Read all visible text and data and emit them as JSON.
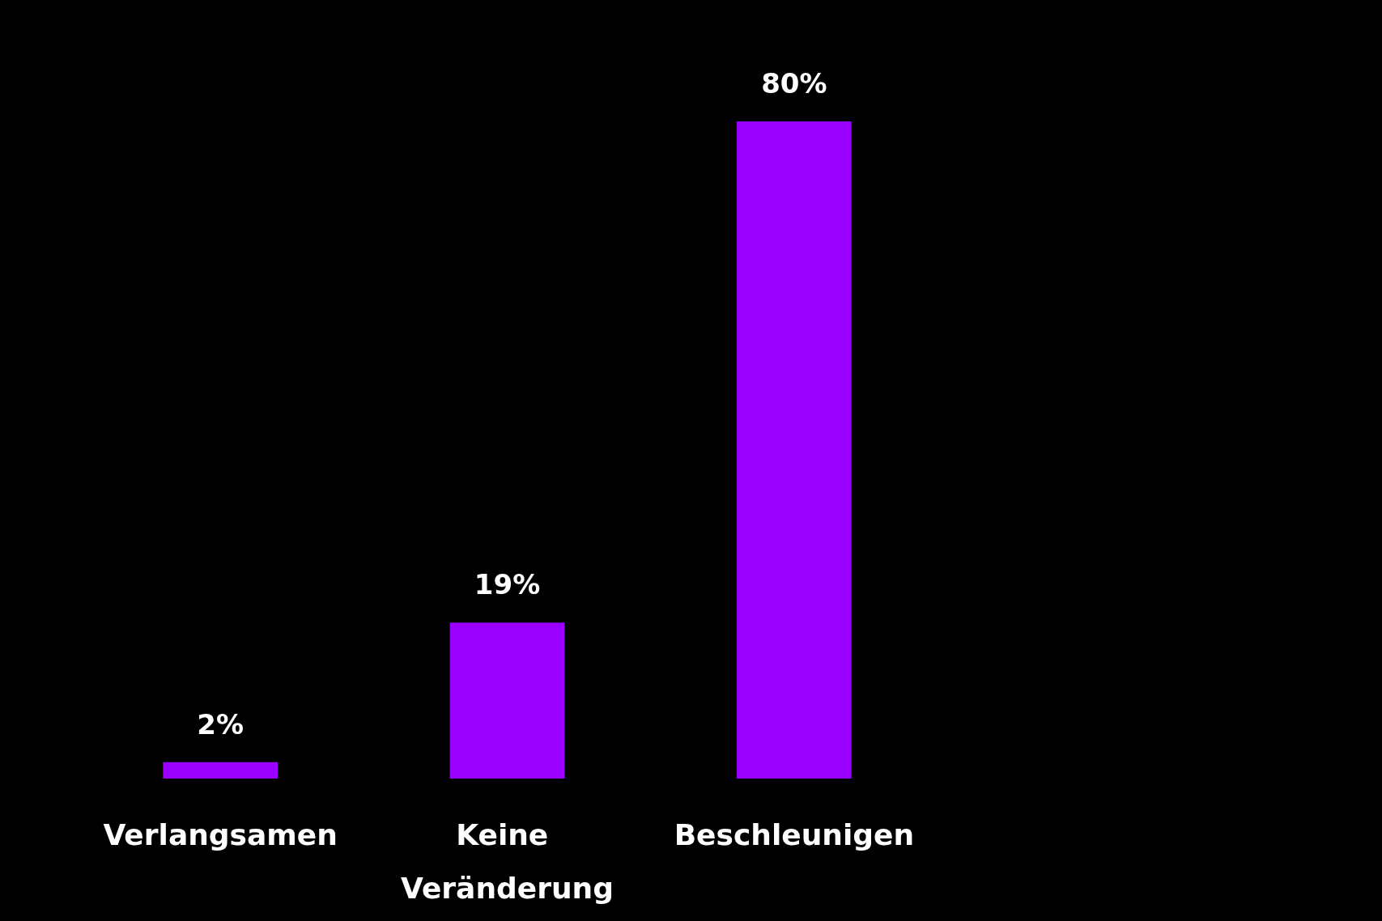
{
  "chart_data": {
    "type": "bar",
    "categories": [
      "Verlangsamen",
      "Keine Veränderung",
      "Beschleunigen"
    ],
    "values": [
      2,
      19,
      80
    ],
    "value_labels": [
      "2%",
      "19%",
      "80%"
    ],
    "color": "#9900ff",
    "grid": false
  }
}
